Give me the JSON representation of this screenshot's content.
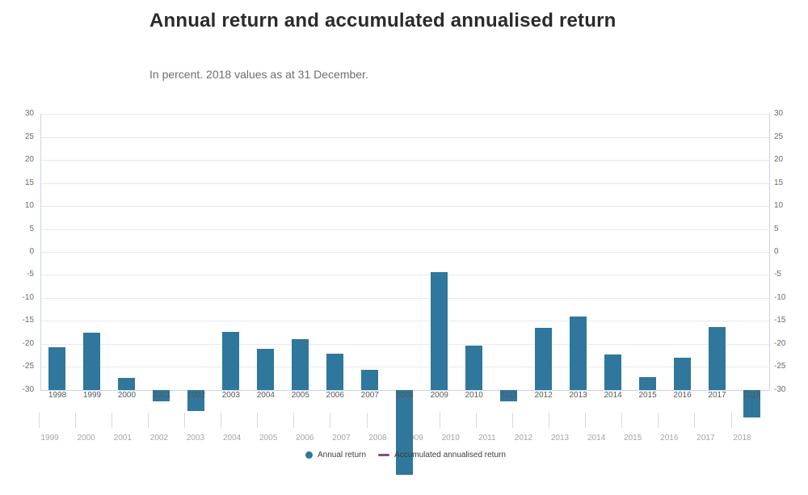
{
  "header": {
    "title": "Annual return and accumulated annualised return",
    "subtitle": "In percent. 2018 values as at 31 December."
  },
  "chart_data": {
    "type": "bar",
    "title": "Annual return and accumulated annualised return",
    "subtitle": "In percent. 2018 values as at 31 December.",
    "categories": [
      1998,
      1999,
      2000,
      2001,
      2002,
      2003,
      2004,
      2005,
      2006,
      2007,
      2008,
      2009,
      2010,
      2011,
      2012,
      2013,
      2014,
      2015,
      2016,
      2017,
      2018
    ],
    "series": [
      {
        "name": "Annual return",
        "type": "bar",
        "color": "#2f779c",
        "values": [
          9.3,
          12.4,
          2.5,
          -2.5,
          -4.7,
          12.6,
          8.9,
          11.1,
          7.9,
          4.3,
          -23.3,
          25.6,
          9.6,
          -2.5,
          13.4,
          16.0,
          7.6,
          2.7,
          6.9,
          13.7,
          -6.1
        ]
      },
      {
        "name": "Accumulated annualised return",
        "type": "line",
        "color": "#85497f",
        "visible_in_plot": false
      }
    ],
    "y_axis": {
      "ticks": [
        30,
        25,
        20,
        15,
        10,
        5,
        0,
        -5,
        -10,
        -15,
        -20,
        -25,
        -30
      ],
      "range": [
        -30,
        30
      ],
      "sides": "both",
      "grid": true
    },
    "x_axis_secondary": {
      "categories": [
        1999,
        2000,
        2001,
        2002,
        2003,
        2004,
        2005,
        2006,
        2007,
        2008,
        2009,
        2010,
        2011,
        2012,
        2013,
        2014,
        2015,
        2016,
        2017,
        2018
      ]
    },
    "render_anomaly": {
      "bar_baseline_value": -30,
      "note": "bars are anchored at the plot bottom (-30); negative-return bars extend below the axis line"
    },
    "legend": [
      {
        "label": "Annual return",
        "marker": "circle",
        "color": "#2f779c"
      },
      {
        "label": "Accumulated annualised return",
        "marker": "line",
        "color": "#85497f"
      }
    ],
    "legend_position": "bottom-center"
  },
  "style": {
    "bar_color": "#2f779c",
    "accumulated_color": "#85497f",
    "grid_color": "#e9e9ef",
    "axis_border_color": "#c9d5ea",
    "title_color": "#2b2b2b",
    "subtitle_color": "#6e6e6e"
  }
}
